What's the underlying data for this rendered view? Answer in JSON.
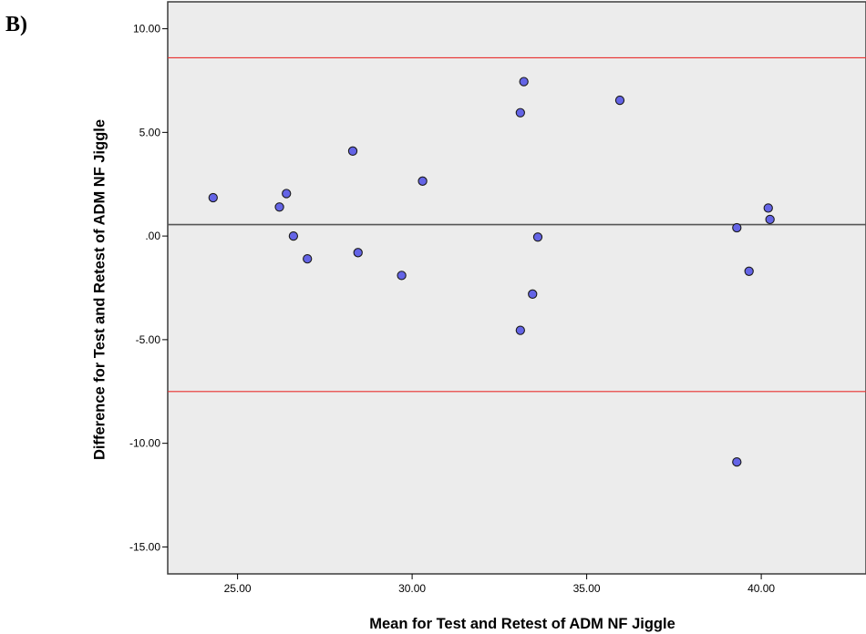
{
  "panel_label": "B)",
  "chart_data": {
    "type": "scatter",
    "title": "",
    "xlabel": "Mean for Test and Retest of ADM NF Jiggle",
    "ylabel": "Difference for Test and Retest of ADM NF Jiggle",
    "xlim": [
      23.0,
      43.0
    ],
    "ylim": [
      -16.3,
      11.3
    ],
    "xticks": [
      25,
      30,
      35,
      40
    ],
    "xtick_labels": [
      "25.00",
      "30.00",
      "35.00",
      "40.00"
    ],
    "yticks": [
      10,
      5,
      0,
      -5,
      -10,
      -15
    ],
    "ytick_labels": [
      "10.00",
      "5.00",
      ".00",
      "-5.00",
      "-10.00",
      "-15.00"
    ],
    "grid": false,
    "reference_lines": [
      {
        "kind": "upper-limit-of-agreement",
        "y": 8.6,
        "color": "#e8302f"
      },
      {
        "kind": "mean-difference",
        "y": 0.55,
        "color": "#555555"
      },
      {
        "kind": "lower-limit-of-agreement",
        "y": -7.5,
        "color": "#e8302f"
      }
    ],
    "series": [
      {
        "x": [
          24.3,
          26.2,
          26.4,
          26.6,
          27.0,
          28.3,
          28.45,
          29.7,
          30.3,
          33.1,
          33.1,
          33.2,
          33.45,
          33.6,
          35.95,
          39.3,
          39.3,
          39.65,
          40.2,
          40.25
        ],
        "y": [
          1.85,
          1.4,
          2.05,
          0.0,
          -1.1,
          4.1,
          -0.8,
          -1.9,
          2.65,
          -4.55,
          5.95,
          7.45,
          -2.8,
          -0.05,
          6.55,
          0.4,
          -10.9,
          -1.7,
          1.35,
          0.8
        ],
        "marker_color": "#6464e6",
        "marker_edge": "#1a1a1a"
      }
    ],
    "colors": {
      "plot_background": "#ececec",
      "frame": "#3c3c3c"
    }
  }
}
